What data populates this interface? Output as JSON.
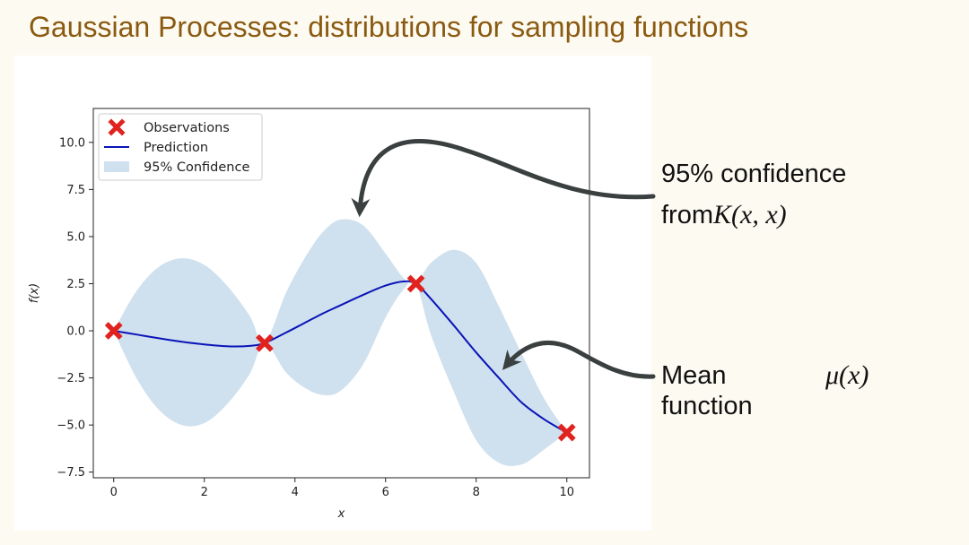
{
  "slide": {
    "title": "Gaussian Processes: distributions for sampling functions"
  },
  "annotations": {
    "confidence": {
      "line1": "95% confidence",
      "line2_prefix": "from",
      "line2_math": "K(x, x)"
    },
    "mean": {
      "line1": "Mean",
      "line2": "function",
      "math": "μ(x)"
    }
  },
  "colors": {
    "mean_line": "#0a14b8",
    "confidence_fill": "#cfe0ee",
    "observation": "#e0231e",
    "arrow": "#3a3f3f",
    "title": "#8a5a10"
  },
  "chart_data": {
    "type": "line",
    "xlabel": "x",
    "ylabel": "f(x)",
    "xlim": [
      -0.45,
      10.5
    ],
    "ylim": [
      -7.8,
      11.8
    ],
    "xticks": [
      0,
      2,
      4,
      6,
      8,
      10
    ],
    "yticks": [
      -7.5,
      -5.0,
      -2.5,
      0.0,
      2.5,
      5.0,
      7.5,
      10.0
    ],
    "ytick_labels": [
      "−7.5",
      "−5.0",
      "−2.5",
      "0.0",
      "2.5",
      "5.0",
      "7.5",
      "10.0"
    ],
    "legend": {
      "position": "top-left",
      "entries": [
        "Observations",
        "Prediction",
        "95% Confidence"
      ]
    },
    "observations": {
      "name": "Observations",
      "x": [
        0,
        3.33,
        6.67,
        10
      ],
      "y": [
        0.0,
        -0.65,
        2.5,
        -5.4
      ]
    },
    "prediction": {
      "name": "Prediction",
      "x": [
        0,
        0.5,
        1.0,
        1.5,
        2.0,
        2.5,
        3.0,
        3.33,
        3.8,
        4.2,
        4.6,
        5.0,
        5.5,
        6.0,
        6.4,
        6.67,
        7.0,
        7.5,
        8.0,
        8.5,
        9.0,
        9.5,
        10.0
      ],
      "y": [
        0.0,
        -0.2,
        -0.4,
        -0.58,
        -0.72,
        -0.82,
        -0.8,
        -0.65,
        -0.1,
        0.4,
        0.9,
        1.35,
        1.9,
        2.4,
        2.62,
        2.5,
        1.7,
        0.3,
        -1.15,
        -2.5,
        -3.8,
        -4.7,
        -5.4
      ]
    },
    "confidence": {
      "name": "95% Confidence",
      "x": [
        0,
        0.5,
        1.0,
        1.5,
        2.0,
        2.5,
        3.0,
        3.33,
        3.8,
        4.2,
        4.6,
        5.0,
        5.5,
        6.0,
        6.4,
        6.67,
        7.0,
        7.5,
        8.0,
        8.5,
        9.0,
        9.5,
        10.0
      ],
      "upper": [
        0.0,
        2.1,
        3.4,
        3.85,
        3.5,
        2.4,
        0.8,
        -0.65,
        2.0,
        3.8,
        5.2,
        5.9,
        5.6,
        4.1,
        2.8,
        2.5,
        3.6,
        4.3,
        3.6,
        1.3,
        -1.2,
        -3.6,
        -5.4
      ],
      "lower": [
        0.0,
        -2.5,
        -4.2,
        -5.0,
        -4.9,
        -3.9,
        -2.3,
        -0.65,
        -2.2,
        -3.0,
        -3.4,
        -3.2,
        -1.8,
        0.7,
        2.2,
        2.5,
        -0.2,
        -3.2,
        -5.8,
        -7.0,
        -7.1,
        -6.3,
        -5.4
      ]
    }
  }
}
